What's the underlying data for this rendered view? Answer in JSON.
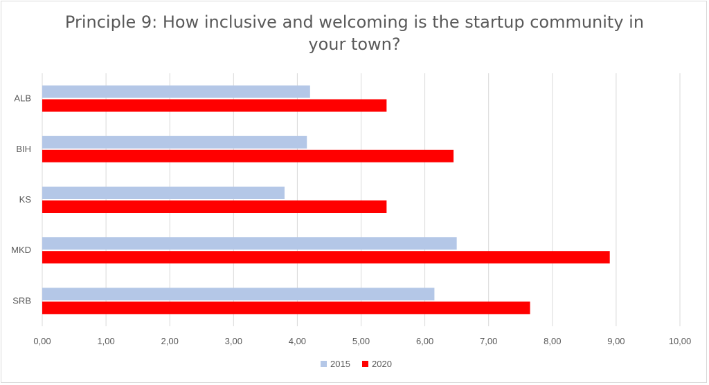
{
  "chart_data": {
    "type": "bar",
    "orientation": "horizontal",
    "title_lines": [
      "Principle 9: How inclusive and welcoming is the startup community in",
      "your town?"
    ],
    "categories": [
      "ALB",
      "BIH",
      "KS",
      "MKD",
      "SRB"
    ],
    "series": [
      {
        "name": "2015",
        "color": "#b4c7e7",
        "values": [
          4.2,
          4.15,
          3.8,
          6.5,
          6.15
        ]
      },
      {
        "name": "2020",
        "color": "#ff0000",
        "values": [
          5.4,
          6.45,
          5.4,
          8.9,
          7.65
        ]
      }
    ],
    "xlim": [
      0,
      10
    ],
    "x_ticks": [
      "0,00",
      "1,00",
      "2,00",
      "3,00",
      "4,00",
      "5,00",
      "6,00",
      "7,00",
      "8,00",
      "9,00",
      "10,00"
    ],
    "grid": true,
    "legend_position": "bottom"
  }
}
